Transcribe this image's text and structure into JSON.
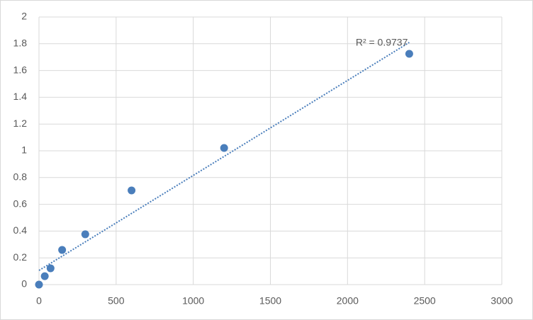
{
  "chart_data": {
    "type": "scatter",
    "series": [
      {
        "color": "#4a7ebb",
        "x": [
          0,
          37.5,
          75,
          150,
          300,
          600,
          1200,
          2400
        ],
        "values": [
          0,
          0.063,
          0.122,
          0.259,
          0.376,
          0.704,
          1.021,
          1.725
        ]
      }
    ],
    "trendline": {
      "x": [
        0,
        2400
      ],
      "values": [
        0.106,
        1.81
      ],
      "style": "dotted"
    },
    "annotation": "R² = 0.9737",
    "xlim": [
      0,
      3000
    ],
    "xticks": [
      0,
      500,
      1000,
      1500,
      2000,
      2500,
      3000
    ],
    "ylim": [
      0,
      2
    ],
    "yticks": [
      0,
      0.2,
      0.4,
      0.6,
      0.8,
      1,
      1.2,
      1.4,
      1.6,
      1.8,
      2
    ],
    "grid": true
  }
}
